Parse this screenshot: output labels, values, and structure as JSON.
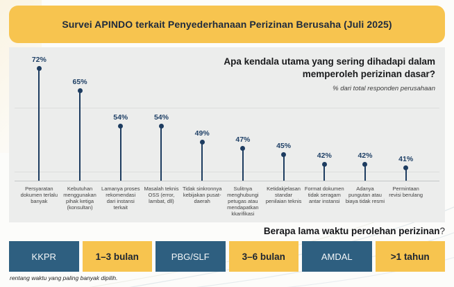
{
  "banner": {
    "title": "Survei APINDO terkait Penyederhanaan Perizinan Berusaha (Juli 2025)"
  },
  "question": {
    "title": "Apa kendala utama yang sering dihadapi dalam memperoleh perizinan dasar?",
    "subtitle": "% dari total responden perusahaan"
  },
  "chart_data": {
    "type": "bar",
    "style": "lollipop",
    "title": "Apa kendala utama yang sering dihadapi dalam memperoleh perizinan dasar?",
    "subtitle": "% dari total responden perusahaan",
    "unit": "%",
    "categories": [
      "Persyaratan dokumen terlalu banyak",
      "Kebutuhan menggunakan pihak ketiga (konsultan)",
      "Lamanya proses rekomendasi dari instansi terkait",
      "Masalah teknis OSS (error, lambat, dll)",
      "Tidak sinkronnya kebijakan pusat-daerah",
      "Sulitnya menghubungi petugas atau mendapatkan kkarifikasi",
      "Ketidakjelasan standar penilaian teknis",
      "Format dokumen tidak seragam antar instansi",
      "Adanya pungutan atau biaya tidak resmi",
      "Permintaan revisi berulang"
    ],
    "values": [
      72,
      65,
      54,
      54,
      49,
      47,
      45,
      42,
      42,
      41
    ],
    "ylim": [
      37,
      78
    ],
    "gridlines_pct": [
      40,
      60
    ],
    "grid": true,
    "legend": false
  },
  "bottom_question": {
    "text": "Berapa lama  waktu perolehan perizinan",
    "mark": "?"
  },
  "duration_chips": [
    {
      "label": "KKPR",
      "style": "blue"
    },
    {
      "label": "1–3 bulan",
      "style": "yellow"
    },
    {
      "label": "PBG/SLF",
      "style": "blue"
    },
    {
      "label": "3–6 bulan",
      "style": "yellow"
    },
    {
      "label": "AMDAL",
      "style": "blue"
    },
    {
      "label": ">1 tahun",
      "style": "yellow"
    }
  ],
  "footnote": "rentang waktu yang paling banyak dipilih.",
  "colors": {
    "banner_yellow": "#F7C44F",
    "chip_blue": "#2E5F80",
    "lollipop_navy": "#1d3c60",
    "panel_gray": "#ECEDEC"
  }
}
